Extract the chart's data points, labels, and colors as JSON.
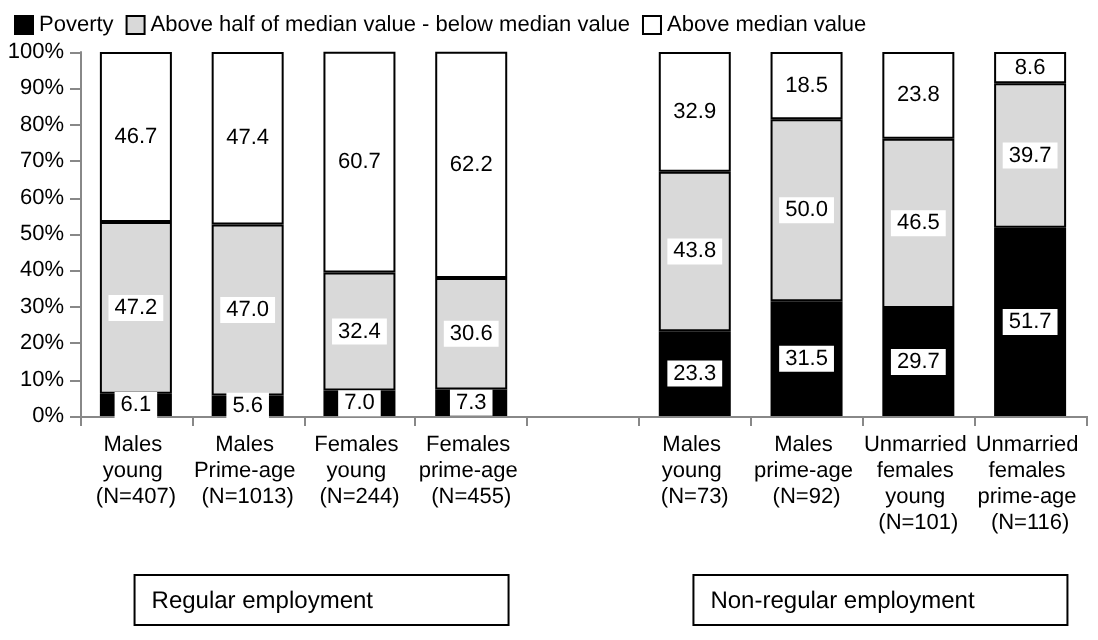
{
  "chart_data": {
    "type": "bar",
    "stacked": true,
    "categories": [
      "Males young (N=407)",
      "Males Prime-age (N=1013)",
      "Females young (N=244)",
      "Females prime-age (N=455)",
      null,
      "Males young (N=73)",
      "Males prime-age (N=92)",
      "Unmarried females young (N=101)",
      "Unmarried females prime-age (N=116)"
    ],
    "series": [
      {
        "name": "Poverty",
        "color": "#000000",
        "values": [
          6.1,
          5.6,
          7.0,
          7.3,
          null,
          23.3,
          31.5,
          29.7,
          51.7
        ],
        "value_labels": [
          "6.1",
          "5.6",
          "7.0",
          "7.3",
          null,
          "23.3",
          "31.5",
          "29.7",
          "51.7"
        ]
      },
      {
        "name": "Above half of median value - below median value",
        "color": "#d9d9d9",
        "values": [
          47.2,
          47.0,
          32.4,
          30.6,
          null,
          43.8,
          50.0,
          46.5,
          39.7
        ],
        "value_labels": [
          "47.2",
          "47.0",
          "32.4",
          "30.6",
          null,
          "43.8",
          "50.0",
          "46.5",
          "39.7"
        ]
      },
      {
        "name": "Above median value",
        "color": "#ffffff",
        "values": [
          46.7,
          47.4,
          60.7,
          62.2,
          null,
          32.9,
          18.5,
          23.8,
          8.6
        ],
        "value_labels": [
          "46.7",
          "47.4",
          "60.7",
          "62.2",
          null,
          "32.9",
          "18.5",
          "23.8",
          "8.6"
        ]
      }
    ],
    "ylim": [
      0,
      100
    ],
    "yticks": [
      {
        "value": 0,
        "label": "0%"
      },
      {
        "value": 10,
        "label": "10%"
      },
      {
        "value": 20,
        "label": "20%"
      },
      {
        "value": 30,
        "label": "30%"
      },
      {
        "value": 40,
        "label": "40%"
      },
      {
        "value": 50,
        "label": "50%"
      },
      {
        "value": 60,
        "label": "60%"
      },
      {
        "value": 70,
        "label": "70%"
      },
      {
        "value": 80,
        "label": "80%"
      },
      {
        "value": 90,
        "label": "90%"
      },
      {
        "value": 100,
        "label": "100%"
      }
    ],
    "grid": false,
    "legend": "top left",
    "annotations": [
      "Regular employment",
      "Non-regular employment"
    ]
  }
}
